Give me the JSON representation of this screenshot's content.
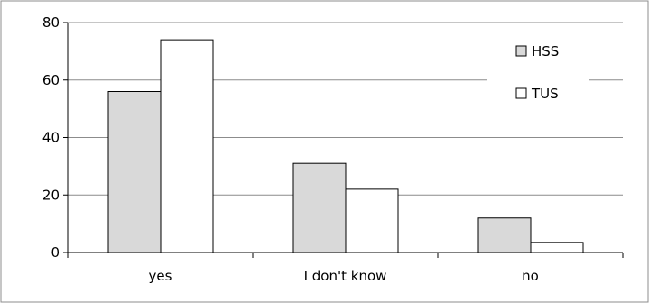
{
  "chart_data": {
    "type": "bar",
    "categories": [
      "yes",
      "I don't know",
      "no"
    ],
    "series": [
      {
        "name": "HSS",
        "values": [
          56,
          31,
          12
        ],
        "color": "#d9d9d9"
      },
      {
        "name": "TUS",
        "values": [
          74,
          22,
          3.5
        ],
        "color": "#ffffff"
      }
    ],
    "ylim": [
      0,
      80
    ],
    "yticks": [
      0,
      20,
      40,
      60,
      80
    ],
    "grid": true,
    "legend": "top-right",
    "title": "",
    "xlabel": "",
    "ylabel": ""
  }
}
